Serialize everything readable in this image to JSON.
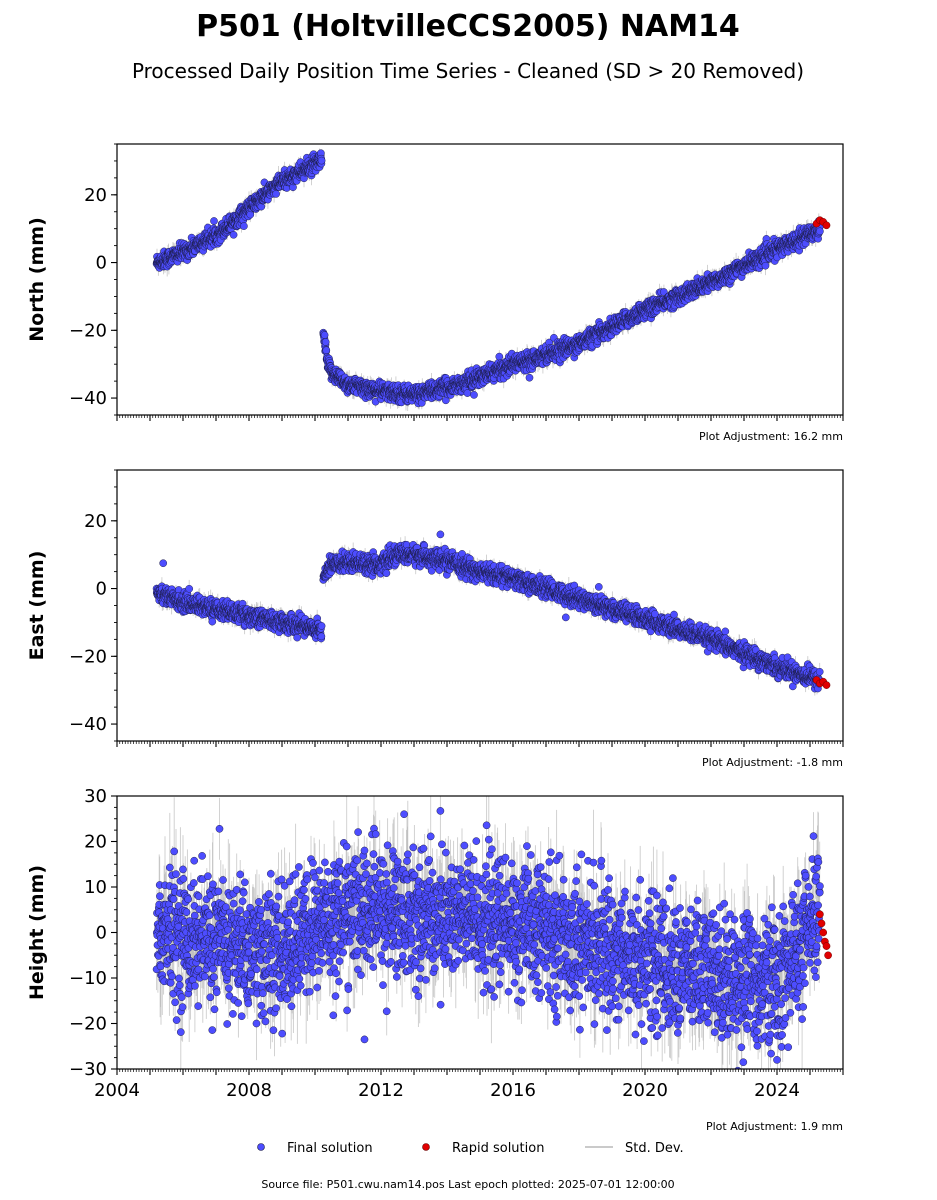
{
  "title": "P501 (HoltvilleCCS2005) NAM14",
  "subtitle": "Processed Daily Position Time Series - Cleaned (SD > 20 Removed)",
  "colors": {
    "final": "#4d4dff",
    "rapid": "#e00000",
    "std_dev": "#b8b8b8",
    "marker_edge": "#1a1a40"
  },
  "legend": [
    {
      "key": "final",
      "label": "Final solution",
      "marker": "dot"
    },
    {
      "key": "rapid",
      "label": "Rapid solution",
      "marker": "dot"
    },
    {
      "key": "std",
      "label": "Std. Dev.",
      "marker": "line"
    }
  ],
  "footer": "Source file: P501.cwu.nam14.pos  Last epoch plotted: 2025-07-01 12:00:00",
  "chart_data": [
    {
      "type": "scatter",
      "id": "north",
      "ylabel": "North (mm)",
      "ylim": [
        -45,
        35
      ],
      "yticks": [
        -40,
        -20,
        0,
        20
      ],
      "ytick_labels": [
        "−40",
        "−20",
        "0",
        "20"
      ],
      "xlim": [
        2004,
        2026
      ],
      "adjustment": "Plot Adjustment: 16.2 mm",
      "final_segments": [
        {
          "x": [
            2005.2,
            2006.0,
            2007.0,
            2008.0,
            2009.0,
            2010.2
          ],
          "y": [
            0,
            3,
            8,
            16,
            24,
            30
          ]
        },
        {
          "x": [
            2010.25,
            2010.4,
            2010.7,
            2011.0,
            2012.0,
            2013.0,
            2014.0,
            2015.0,
            2016.0,
            2017.0,
            2018.0,
            2019.0,
            2020.0,
            2021.0,
            2022.0,
            2023.0,
            2024.0,
            2025.3
          ],
          "y": [
            -21,
            -31,
            -34,
            -36,
            -38,
            -39,
            -37,
            -34,
            -30,
            -27,
            -24,
            -19,
            -14,
            -10,
            -6,
            -1,
            4,
            10
          ]
        }
      ],
      "final_spread": 1.2,
      "final_outliers": [
        {
          "x": 2016.5,
          "y": -34
        }
      ],
      "rapid": {
        "x": [
          2025.2,
          2025.3,
          2025.4,
          2025.5
        ],
        "y": [
          11.5,
          12.5,
          12,
          11
        ]
      }
    },
    {
      "type": "scatter",
      "id": "east",
      "ylabel": "East (mm)",
      "ylim": [
        -45,
        35
      ],
      "yticks": [
        -40,
        -20,
        0,
        20
      ],
      "ytick_labels": [
        "−40",
        "−20",
        "0",
        "20"
      ],
      "xlim": [
        2004,
        2026
      ],
      "adjustment": "Plot Adjustment: -1.8 mm",
      "final_segments": [
        {
          "x": [
            2005.2,
            2006.0,
            2007.0,
            2008.0,
            2009.0,
            2010.2
          ],
          "y": [
            -1,
            -4,
            -6,
            -8,
            -10,
            -12
          ]
        },
        {
          "x": [
            2010.25,
            2010.5,
            2011.0,
            2012.0,
            2012.5,
            2013.0,
            2014.0,
            2015.0,
            2016.0,
            2017.0,
            2018.0,
            2019.0,
            2020.0,
            2021.0,
            2022.0,
            2023.0,
            2024.0,
            2025.3
          ],
          "y": [
            3,
            7,
            8,
            7,
            10,
            10,
            8,
            5,
            3,
            0,
            -3,
            -6,
            -9,
            -12,
            -15,
            -19,
            -23,
            -27
          ]
        }
      ],
      "final_spread": 1.3,
      "final_outliers": [
        {
          "x": 2005.4,
          "y": 7.5
        },
        {
          "x": 2013.8,
          "y": 16
        },
        {
          "x": 2017.6,
          "y": -8.5
        },
        {
          "x": 2018.6,
          "y": 0.5
        },
        {
          "x": 2020.3,
          "y": -7.5
        }
      ],
      "rapid": {
        "x": [
          2025.2,
          2025.3,
          2025.4,
          2025.5
        ],
        "y": [
          -27,
          -28,
          -27.5,
          -28.5
        ]
      }
    },
    {
      "type": "scatter",
      "id": "height",
      "ylabel": "Height (mm)",
      "ylim": [
        -30,
        30
      ],
      "yticks": [
        -30,
        -20,
        -10,
        0,
        10,
        20,
        30
      ],
      "ytick_labels": [
        "−30",
        "−20",
        "−10",
        "0",
        "10",
        "20",
        "30"
      ],
      "xlim": [
        2004,
        2026
      ],
      "xticks": [
        2004,
        2008,
        2012,
        2016,
        2020,
        2024
      ],
      "xtick_labels": [
        "2004",
        "2008",
        "2012",
        "2016",
        "2020",
        "2024"
      ],
      "adjustment": "Plot Adjustment: 1.9 mm",
      "final_segments": [
        {
          "x": [
            2005.2,
            2007.0,
            2009.0,
            2010.3,
            2011.5,
            2013.0,
            2015.0,
            2017.0,
            2019.0,
            2021.0,
            2023.0,
            2024.0,
            2025.3
          ],
          "y": [
            0,
            -2,
            -5,
            3,
            5,
            4,
            3,
            0,
            -4,
            -8,
            -10,
            -12,
            4
          ]
        }
      ],
      "final_spread": 7,
      "final_outliers": [
        {
          "x": 2011.5,
          "y": -23.5
        },
        {
          "x": 2012.7,
          "y": 26
        },
        {
          "x": 2024.0,
          "y": -28
        }
      ],
      "rapid": {
        "x": [
          2025.3,
          2025.35,
          2025.4,
          2025.45,
          2025.5,
          2025.55
        ],
        "y": [
          4,
          2,
          0,
          -2,
          -3,
          -5
        ]
      }
    }
  ]
}
